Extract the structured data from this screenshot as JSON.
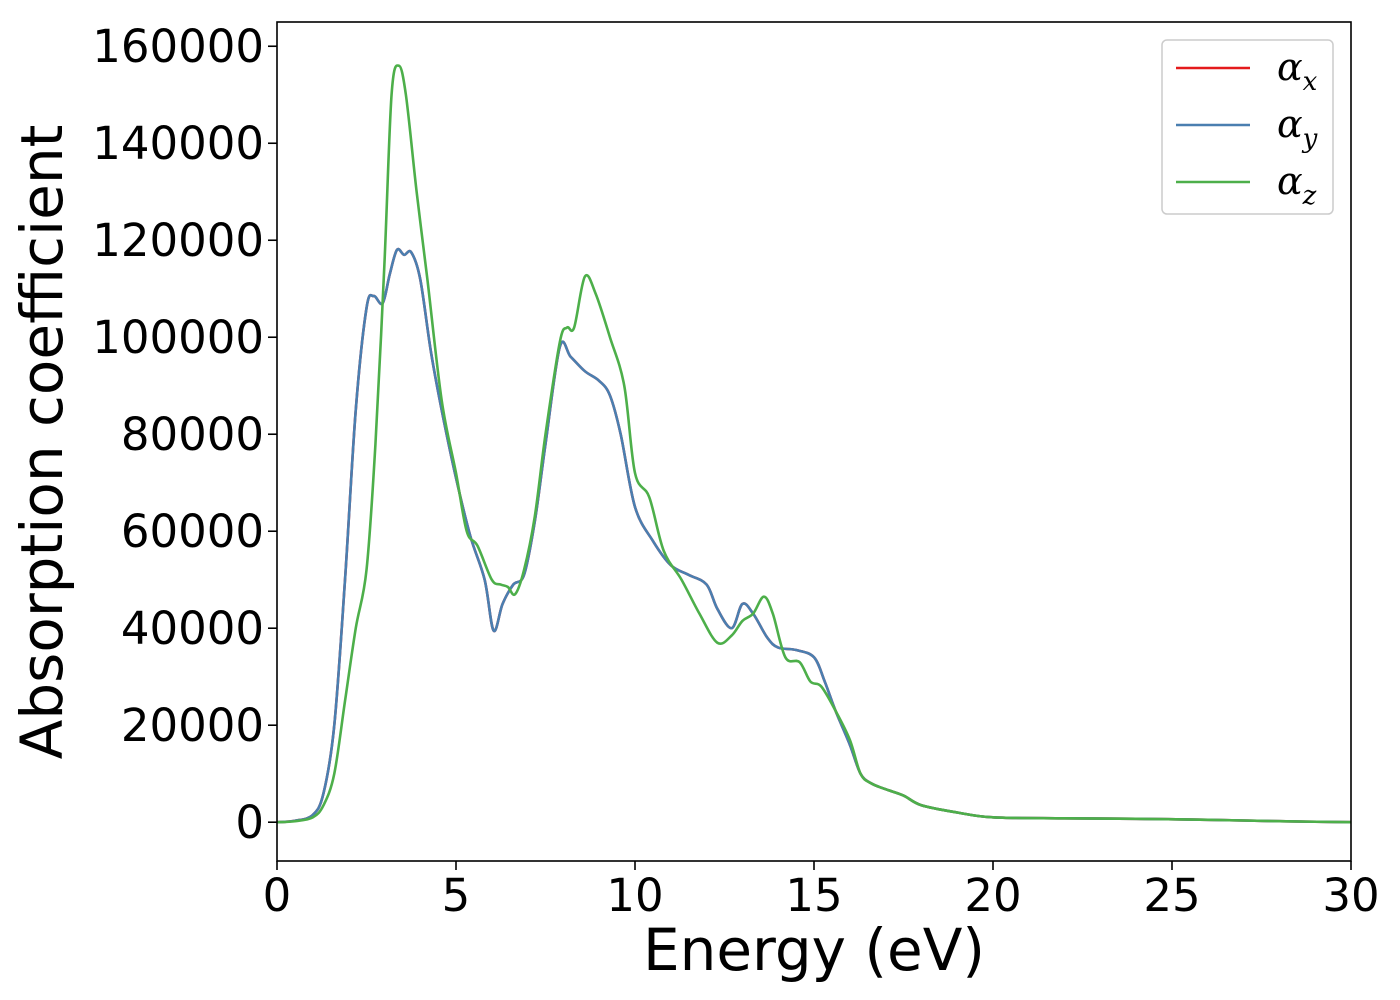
{
  "chart_data": {
    "type": "line",
    "title": "",
    "xlabel": "Energy (eV)",
    "ylabel": "Absorption coefficient",
    "xlim": [
      0,
      30
    ],
    "ylim": [
      -8000,
      165000
    ],
    "x_ticks": [
      0,
      5,
      10,
      15,
      20,
      25,
      30
    ],
    "y_ticks": [
      0,
      20000,
      40000,
      60000,
      80000,
      100000,
      120000,
      140000,
      160000
    ],
    "grid": false,
    "legend_position": "top-right",
    "series": [
      {
        "name": "α",
        "subscript": "x",
        "color": "#e41a1c",
        "x": [
          0,
          0.5,
          1.0,
          1.3,
          1.6,
          1.9,
          2.2,
          2.5,
          2.7,
          2.95,
          3.15,
          3.35,
          3.55,
          3.75,
          4.0,
          4.3,
          4.6,
          5.0,
          5.4,
          5.8,
          6.05,
          6.3,
          6.6,
          6.9,
          7.2,
          7.5,
          7.9,
          8.2,
          8.6,
          9.0,
          9.3,
          9.6,
          10.0,
          10.5,
          11.0,
          11.5,
          12.0,
          12.3,
          12.7,
          13.0,
          13.3,
          13.7,
          14.0,
          14.5,
          15.0,
          15.3,
          15.6,
          16.0,
          16.3,
          16.6,
          17.0,
          17.5,
          18.0,
          19.0,
          20.0,
          22.0,
          24.0,
          26.0,
          28.0,
          30.0
        ],
        "values": [
          0,
          300,
          1500,
          6000,
          20000,
          50000,
          85000,
          106000,
          108500,
          107000,
          113000,
          118000,
          117000,
          117500,
          112000,
          97000,
          85000,
          71000,
          59000,
          50000,
          39500,
          45000,
          49000,
          51000,
          62000,
          78000,
          98000,
          96000,
          93000,
          91000,
          88000,
          80000,
          65000,
          58000,
          53000,
          51000,
          49000,
          44000,
          40000,
          45000,
          43000,
          38000,
          36000,
          35500,
          34000,
          29000,
          23000,
          16000,
          10000,
          8000,
          6800,
          5500,
          3500,
          2000,
          1000,
          800,
          700,
          500,
          200,
          0
        ]
      },
      {
        "name": "α",
        "subscript": "y",
        "color": "#4a7fb0",
        "x": [
          0,
          0.5,
          1.0,
          1.3,
          1.6,
          1.9,
          2.2,
          2.5,
          2.7,
          2.95,
          3.15,
          3.35,
          3.55,
          3.75,
          4.0,
          4.3,
          4.6,
          5.0,
          5.4,
          5.8,
          6.05,
          6.3,
          6.6,
          6.9,
          7.2,
          7.5,
          7.9,
          8.2,
          8.6,
          9.0,
          9.3,
          9.6,
          10.0,
          10.5,
          11.0,
          11.5,
          12.0,
          12.3,
          12.7,
          13.0,
          13.3,
          13.7,
          14.0,
          14.5,
          15.0,
          15.3,
          15.6,
          16.0,
          16.3,
          16.6,
          17.0,
          17.5,
          18.0,
          19.0,
          20.0,
          22.0,
          24.0,
          26.0,
          28.0,
          30.0
        ],
        "values": [
          0,
          300,
          1500,
          6000,
          20000,
          50000,
          85000,
          106000,
          108500,
          107000,
          113000,
          118000,
          117000,
          117500,
          112000,
          97000,
          85000,
          71000,
          59000,
          50000,
          39500,
          45000,
          49000,
          51000,
          62000,
          78000,
          98000,
          96000,
          93000,
          91000,
          88000,
          80000,
          65000,
          58000,
          53000,
          51000,
          49000,
          44000,
          40000,
          45000,
          43000,
          38000,
          36000,
          35500,
          34000,
          29000,
          23000,
          16000,
          10000,
          8000,
          6800,
          5500,
          3500,
          2000,
          1000,
          800,
          700,
          500,
          200,
          0
        ]
      },
      {
        "name": "α",
        "subscript": "z",
        "color": "#4daf4a",
        "x": [
          0,
          0.5,
          1.0,
          1.3,
          1.6,
          1.9,
          2.2,
          2.5,
          2.75,
          3.0,
          3.2,
          3.4,
          3.6,
          3.9,
          4.2,
          4.6,
          5.0,
          5.3,
          5.6,
          6.0,
          6.25,
          6.45,
          6.65,
          6.9,
          7.2,
          7.5,
          7.9,
          8.1,
          8.3,
          8.6,
          8.9,
          9.3,
          9.7,
          10.0,
          10.4,
          10.8,
          11.3,
          11.8,
          12.3,
          12.7,
          13.0,
          13.3,
          13.6,
          13.85,
          14.2,
          14.6,
          14.9,
          15.2,
          15.6,
          16.0,
          16.3,
          16.6,
          17.0,
          17.5,
          18.0,
          19.0,
          20.0,
          22.0,
          24.0,
          26.0,
          28.0,
          30.0
        ],
        "values": [
          0,
          200,
          1000,
          3500,
          10000,
          25000,
          40000,
          52000,
          78000,
          115000,
          150000,
          156000,
          150000,
          130000,
          112000,
          87000,
          72000,
          60000,
          57000,
          50000,
          49000,
          48500,
          47000,
          52000,
          63000,
          80000,
          99000,
          102000,
          102000,
          112500,
          109000,
          100000,
          90000,
          72000,
          67000,
          56000,
          50000,
          43000,
          37000,
          38500,
          41500,
          43000,
          46500,
          43000,
          34000,
          33000,
          29000,
          28000,
          23000,
          17000,
          10000,
          8000,
          6800,
          5500,
          3500,
          2000,
          1000,
          800,
          700,
          500,
          200,
          0
        ]
      }
    ]
  }
}
